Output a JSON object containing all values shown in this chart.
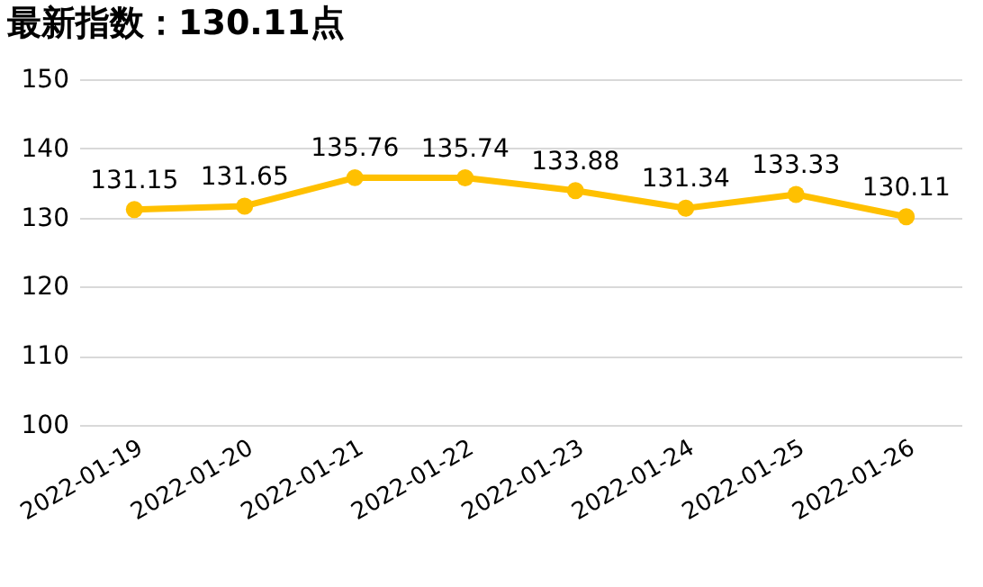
{
  "chart_data": {
    "type": "line",
    "title": "最新指数：130.11点",
    "categories": [
      "2022-01-19",
      "2022-01-20",
      "2022-01-21",
      "2022-01-22",
      "2022-01-23",
      "2022-01-24",
      "2022-01-25",
      "2022-01-26"
    ],
    "series": [
      {
        "color": "#ffc000",
        "values": [
          131.15,
          131.65,
          135.76,
          135.74,
          133.88,
          131.34,
          133.33,
          130.11
        ]
      }
    ],
    "ylim": [
      100,
      150
    ],
    "yticks": [
      100,
      110,
      120,
      130,
      140,
      150
    ],
    "grid": "y",
    "data_labels": true,
    "marker": "circle",
    "line_style": "solid"
  }
}
